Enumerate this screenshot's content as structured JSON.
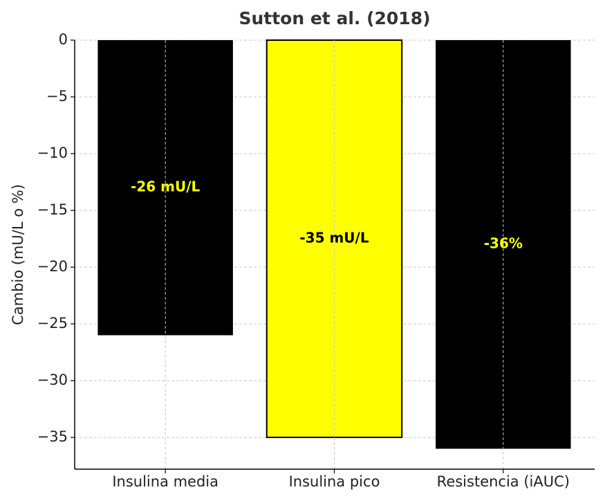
{
  "chart_data": {
    "type": "bar",
    "title": "Sutton et al. (2018)",
    "y_label": "Cambio (mU/L o %)",
    "categories": [
      "Insulina media",
      "Insulina pico",
      "Resistencia (iAUC)"
    ],
    "values": [
      -26,
      -35,
      -36
    ],
    "value_labels": [
      "-26 mU/L",
      "-35 mU/L",
      "-36%"
    ],
    "colors": [
      "#000000",
      "#ffff00",
      "#000000"
    ],
    "value_label_colors": [
      "#ffff00",
      "#000000",
      "#ffff00"
    ],
    "ylim": [
      -37.8,
      0
    ],
    "yticks": [
      0,
      {
        "value": -5,
        "label": "−5"
      },
      {
        "value": -10,
        "label": "−10"
      },
      {
        "value": -15,
        "label": "−15"
      },
      {
        "value": -20,
        "label": "−20"
      },
      {
        "value": -25,
        "label": "−25"
      },
      {
        "value": -30,
        "label": "−30"
      },
      {
        "value": -35,
        "label": "−35"
      }
    ],
    "grid": true
  }
}
